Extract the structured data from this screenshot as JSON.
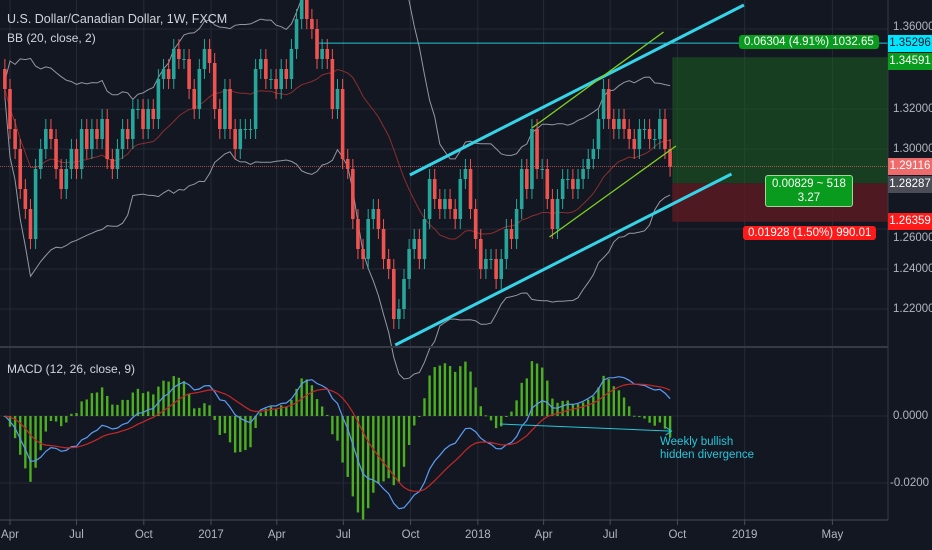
{
  "header": {
    "title": "U.S. Dollar/Canadian Dollar, 1W, FXCM",
    "bb_legend": "BB (20, close, 2)",
    "macd_legend": "MACD (12, 26, close, 9)"
  },
  "colors": {
    "background": "#131722",
    "up": "#26a69a",
    "down": "#ef5350",
    "channel": "#35d4e8",
    "inner_channel": "#7ed321",
    "macd_line": "#5b9cf6",
    "signal_line": "#c62828",
    "histogram": "#4caf20",
    "profit_zone": "#1b5e20",
    "loss_zone": "#5a1a22"
  },
  "chart_data": [
    {
      "type": "candlestick",
      "title": "U.S. Dollar/Canadian Dollar, 1W, FXCM",
      "interval": "1W",
      "x": [
        "2016-03-25",
        "2016-04-01",
        "2016-04-08",
        "2016-04-15",
        "2016-04-22",
        "2016-04-29",
        "2016-05-06",
        "2016-05-13",
        "2016-05-20",
        "2016-05-27",
        "2016-06-03",
        "2016-06-10",
        "2016-06-17",
        "2016-06-24",
        "2016-07-01",
        "2016-07-08",
        "2016-07-15",
        "2016-07-22",
        "2016-07-29",
        "2016-08-05",
        "2016-08-12",
        "2016-08-19",
        "2016-08-26",
        "2016-09-02",
        "2016-09-09",
        "2016-09-16",
        "2016-09-23",
        "2016-09-30",
        "2016-10-07",
        "2016-10-14",
        "2016-10-21",
        "2016-10-28",
        "2016-11-04",
        "2016-11-11",
        "2016-11-18",
        "2016-11-25",
        "2016-12-02",
        "2016-12-09",
        "2016-12-16",
        "2016-12-23",
        "2016-12-30",
        "2017-01-06",
        "2017-01-13",
        "2017-01-20",
        "2017-01-27",
        "2017-02-03",
        "2017-02-10",
        "2017-02-17",
        "2017-02-24",
        "2017-03-03",
        "2017-03-10",
        "2017-03-17",
        "2017-03-24",
        "2017-03-31",
        "2017-04-07",
        "2017-04-14",
        "2017-04-21",
        "2017-04-28",
        "2017-05-05",
        "2017-05-12",
        "2017-05-19",
        "2017-05-26",
        "2017-06-02",
        "2017-06-09",
        "2017-06-16",
        "2017-06-23",
        "2017-06-30",
        "2017-07-07",
        "2017-07-14",
        "2017-07-21",
        "2017-07-28",
        "2017-08-04",
        "2017-08-11",
        "2017-08-18",
        "2017-08-25",
        "2017-09-01",
        "2017-09-08",
        "2017-09-15",
        "2017-09-22",
        "2017-09-29",
        "2017-10-06",
        "2017-10-13",
        "2017-10-20",
        "2017-10-27",
        "2017-11-03",
        "2017-11-10",
        "2017-11-17",
        "2017-11-24",
        "2017-12-01",
        "2017-12-08",
        "2017-12-15",
        "2017-12-22",
        "2017-12-29",
        "2018-01-05",
        "2018-01-12",
        "2018-01-19",
        "2018-01-26",
        "2018-02-02",
        "2018-02-09",
        "2018-02-16",
        "2018-02-23",
        "2018-03-02",
        "2018-03-09",
        "2018-03-16",
        "2018-03-23",
        "2018-03-30",
        "2018-04-06",
        "2018-04-13",
        "2018-04-20",
        "2018-04-27",
        "2018-05-04",
        "2018-05-11",
        "2018-05-18",
        "2018-05-25",
        "2018-06-01",
        "2018-06-08",
        "2018-06-15",
        "2018-06-22",
        "2018-06-29",
        "2018-07-06",
        "2018-07-13",
        "2018-07-20",
        "2018-07-27",
        "2018-08-03",
        "2018-08-10",
        "2018-08-17",
        "2018-08-24",
        "2018-08-31",
        "2018-09-07",
        "2018-09-14",
        "2018-09-21"
      ],
      "close": [
        1.33,
        1.31,
        1.3,
        1.28,
        1.27,
        1.255,
        1.29,
        1.3,
        1.31,
        1.305,
        1.29,
        1.28,
        1.29,
        1.3,
        1.29,
        1.31,
        1.3,
        1.31,
        1.305,
        1.315,
        1.295,
        1.29,
        1.3,
        1.31,
        1.305,
        1.32,
        1.32,
        1.31,
        1.32,
        1.315,
        1.335,
        1.34,
        1.335,
        1.35,
        1.345,
        1.345,
        1.33,
        1.32,
        1.34,
        1.35,
        1.343,
        1.32,
        1.31,
        1.33,
        1.31,
        1.3,
        1.31,
        1.31,
        1.31,
        1.34,
        1.345,
        1.335,
        1.335,
        1.33,
        1.34,
        1.335,
        1.35,
        1.365,
        1.375,
        1.365,
        1.36,
        1.345,
        1.35,
        1.345,
        1.32,
        1.33,
        1.295,
        1.29,
        1.265,
        1.25,
        1.245,
        1.265,
        1.27,
        1.26,
        1.245,
        1.24,
        1.215,
        1.22,
        1.235,
        1.25,
        1.255,
        1.245,
        1.265,
        1.285,
        1.275,
        1.27,
        1.275,
        1.27,
        1.265,
        1.285,
        1.29,
        1.27,
        1.255,
        1.24,
        1.245,
        1.245,
        1.235,
        1.245,
        1.26,
        1.255,
        1.27,
        1.29,
        1.28,
        1.31,
        1.29,
        1.29,
        1.275,
        1.26,
        1.275,
        1.285,
        1.285,
        1.28,
        1.285,
        1.29,
        1.295,
        1.3,
        1.315,
        1.33,
        1.315,
        1.31,
        1.315,
        1.31,
        1.305,
        1.3,
        1.31,
        1.31,
        1.305,
        1.305,
        1.315,
        1.3,
        1.29116
      ],
      "time_ticks": [
        "Apr",
        "Jul",
        "Oct",
        "2017",
        "Apr",
        "Jul",
        "Oct",
        "2018",
        "Apr",
        "Jul",
        "Oct",
        "2019",
        "May"
      ],
      "time_tick_dates": [
        "2016-04-01",
        "2016-07-01",
        "2016-10-01",
        "2017-01-01",
        "2017-04-01",
        "2017-07-01",
        "2017-10-01",
        "2018-01-01",
        "2018-04-01",
        "2018-07-01",
        "2018-10-01",
        "2019-01-01",
        "2019-05-01"
      ],
      "price_ticks": [
        "1.36000",
        "1.32000",
        "1.30000",
        "1.26000",
        "1.24000",
        "1.22000"
      ],
      "price_tick_values": [
        1.36,
        1.32,
        1.3,
        1.26,
        1.24,
        1.22
      ],
      "bollinger": {
        "length": 20,
        "source": "close",
        "mult": 2
      },
      "price_labels": [
        {
          "value": 1.35296,
          "text": "1.35296",
          "bg": "#00e5ff",
          "fg": "#131722"
        },
        {
          "value": 1.34591,
          "text": "1.34591",
          "bg": "#089b1e",
          "fg": "#ffffff"
        },
        {
          "value": 1.29116,
          "text": "1.29116",
          "bg": "#ef6a6a",
          "fg": "#ffffff"
        },
        {
          "value": 1.28287,
          "text": "1.28287",
          "bg": "#4a4d55",
          "fg": "#ffffff"
        },
        {
          "value": 1.26359,
          "text": "1.26359",
          "bg": "#ff1a1a",
          "fg": "#ffffff"
        }
      ],
      "drawings": {
        "upper_channel": [
          [
            "2017-09-30",
            1.287
          ],
          [
            "2018-12-31",
            1.372
          ]
        ],
        "lower_channel": [
          [
            "2017-09-10",
            1.202
          ],
          [
            "2018-12-14",
            1.2875
          ]
        ],
        "inner_upper": [
          [
            "2018-03-16",
            1.3105
          ],
          [
            "2018-09-12",
            1.3585
          ]
        ],
        "inner_lower": [
          [
            "2018-04-09",
            1.256
          ],
          [
            "2018-09-29",
            1.3015
          ]
        ],
        "horizontal_line": {
          "from": "2017-05-29",
          "value": 1.35296
        },
        "long_position": {
          "from": "2018-09-24",
          "entry": 1.28287,
          "target": 1.34591,
          "stop": 1.26359,
          "target_label": "0.06304 (4.91%) 1032.65",
          "center_label_1": "0.00829 ~ 518",
          "center_label_2": "3.27",
          "stop_label": "0.01928 (1.50%) 990.01"
        }
      }
    },
    {
      "type": "macd",
      "title": "MACD (12, 26, close, 9)",
      "fast": 12,
      "slow": 26,
      "signal": 9,
      "source": "close",
      "y_ticks": [
        "0.0000",
        "-0.0200"
      ],
      "y_tick_values": [
        0,
        -0.02
      ],
      "divergence_arrow": [
        [
          "2018-01-31",
          -0.0024
        ],
        [
          "2018-09-23",
          -0.0045
        ]
      ],
      "annotation_1": "Weekly bullish",
      "annotation_2": "hidden divergence"
    }
  ]
}
